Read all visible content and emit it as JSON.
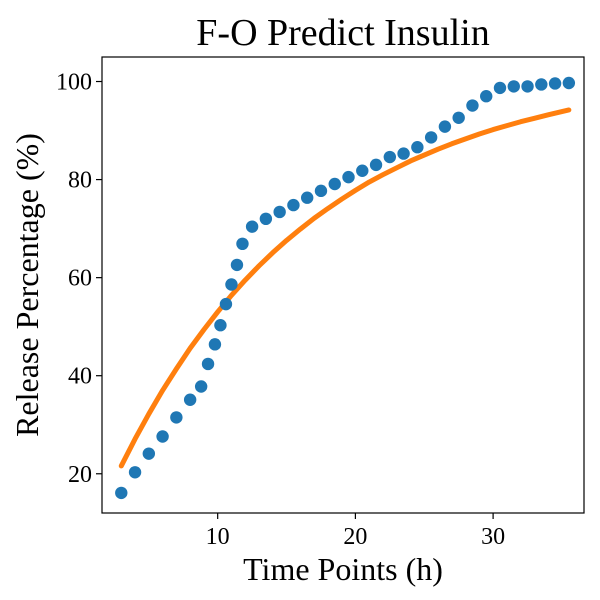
{
  "chart_data": {
    "type": "scatter",
    "title": "F-O Predict Insulin",
    "xlabel": "Time Points (h)",
    "ylabel": "Release Percentage (%)",
    "xlim": [
      1.6,
      36.6
    ],
    "ylim": [
      12,
      105
    ],
    "xticks": [
      10,
      20,
      30
    ],
    "yticks": [
      20,
      40,
      60,
      80,
      100
    ],
    "x_tick_labels": [
      "10",
      "20",
      "30"
    ],
    "y_tick_labels": [
      "20",
      "40",
      "60",
      "80",
      "100"
    ],
    "grid": false,
    "series": [
      {
        "kind": "scatter",
        "color": "#1f77b4",
        "x": [
          3.0,
          4.0,
          5.0,
          6.0,
          7.0,
          8.0,
          8.8,
          9.3,
          9.8,
          10.2,
          10.6,
          11.0,
          11.4,
          11.8,
          12.5,
          13.5,
          14.5,
          15.5,
          16.5,
          17.5,
          18.5,
          19.5,
          20.5,
          21.5,
          22.5,
          23.5,
          24.5,
          25.5,
          26.5,
          27.5,
          28.5,
          29.5,
          30.5,
          31.5,
          32.5,
          33.5,
          34.5,
          35.5
        ],
        "y": [
          16.1,
          20.3,
          24.1,
          27.6,
          31.5,
          35.1,
          37.8,
          42.4,
          46.4,
          50.3,
          54.6,
          58.6,
          62.6,
          66.9,
          70.4,
          72.0,
          73.4,
          74.8,
          76.3,
          77.7,
          79.1,
          80.5,
          81.8,
          83.0,
          84.6,
          85.3,
          86.6,
          88.6,
          90.8,
          92.6,
          95.1,
          97.0,
          98.7,
          99.0,
          99.0,
          99.4,
          99.6,
          99.7
        ]
      },
      {
        "kind": "line",
        "color": "#ff7f0e",
        "x": [
          3.0,
          4.0,
          5.0,
          6.0,
          7.0,
          8.0,
          9.0,
          10.0,
          11.0,
          12.0,
          13.0,
          14.0,
          15.0,
          16.0,
          17.0,
          18.0,
          19.0,
          20.0,
          21.0,
          22.0,
          23.0,
          24.0,
          25.0,
          26.0,
          27.0,
          28.0,
          29.0,
          30.0,
          31.0,
          32.0,
          33.0,
          34.0,
          35.5
        ],
        "y": [
          21.6,
          27.1,
          32.2,
          37.0,
          41.4,
          45.6,
          49.4,
          53.0,
          56.4,
          59.5,
          62.4,
          65.1,
          67.6,
          69.9,
          72.1,
          74.1,
          76.0,
          77.8,
          79.5,
          81.0,
          82.4,
          83.8,
          85.0,
          86.2,
          87.3,
          88.3,
          89.3,
          90.2,
          91.0,
          91.8,
          92.5,
          93.2,
          94.2
        ]
      }
    ]
  }
}
